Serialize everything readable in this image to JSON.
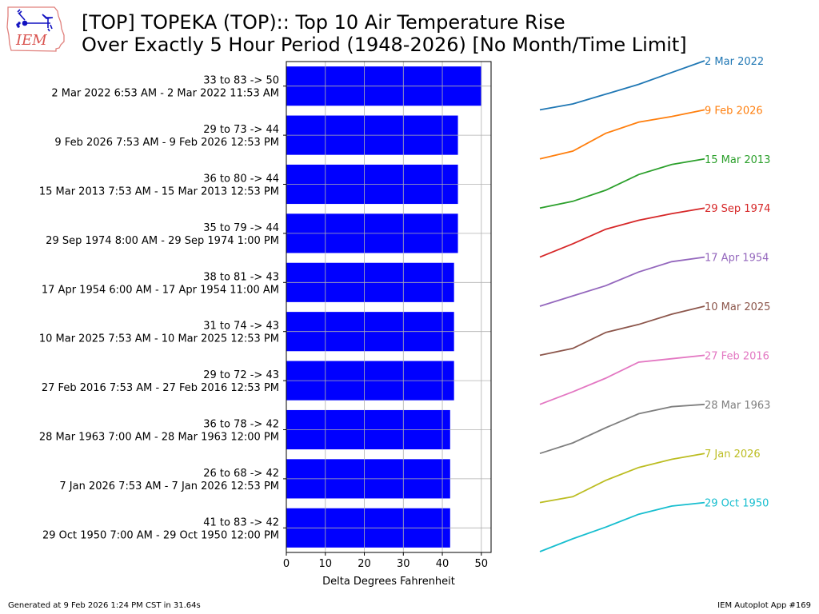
{
  "title": {
    "line1": "[TOP] TOPEKA (TOP):: Top 10 Air Temperature Rise",
    "line2": "Over Exactly 5 Hour Period (1948-2026) [No Month/Time Limit]"
  },
  "logo": {
    "text": "IEM"
  },
  "footer": {
    "left": "Generated at 9 Feb 2026 1:24 PM CST in 31.64s",
    "right": "IEM Autoplot App #169"
  },
  "colors": {
    "bar": "#0000ff",
    "grid": "#b0b0b0",
    "logo_red": "#d9534f",
    "logo_blue": "#1010c0"
  },
  "chart_data": {
    "type": "bar",
    "orientation": "horizontal",
    "xlabel": "Delta Degrees Fahrenheit",
    "xlim": [
      0,
      52.5
    ],
    "xticks": [
      0,
      10,
      20,
      30,
      40,
      50
    ],
    "grid": true,
    "categories": [
      {
        "line1": "33 to 83 -> 50",
        "line2": "2 Mar 2022 6:53 AM - 2 Mar 2022 11:53 AM"
      },
      {
        "line1": "29 to 73 -> 44",
        "line2": "9 Feb 2026 7:53 AM - 9 Feb 2026 12:53 PM"
      },
      {
        "line1": "36 to 80 -> 44",
        "line2": "15 Mar 2013 7:53 AM - 15 Mar 2013 12:53 PM"
      },
      {
        "line1": "35 to 79 -> 44",
        "line2": "29 Sep 1974 8:00 AM - 29 Sep 1974 1:00 PM"
      },
      {
        "line1": "38 to 81 -> 43",
        "line2": "17 Apr 1954 6:00 AM - 17 Apr 1954 11:00 AM"
      },
      {
        "line1": "31 to 74 -> 43",
        "line2": "10 Mar 2025 7:53 AM - 10 Mar 2025 12:53 PM"
      },
      {
        "line1": "29 to 72 -> 43",
        "line2": "27 Feb 2016 7:53 AM - 27 Feb 2016 12:53 PM"
      },
      {
        "line1": "36 to 78 -> 42",
        "line2": "28 Mar 1963 7:00 AM - 28 Mar 1963 12:00 PM"
      },
      {
        "line1": "26 to 68 -> 42",
        "line2": "7 Jan 2026 7:53 AM - 7 Jan 2026 12:53 PM"
      },
      {
        "line1": "41 to 83 -> 42",
        "line2": "29 Oct 1950 7:00 AM - 29 Oct 1950 12:00 PM"
      }
    ],
    "values": [
      50,
      44,
      44,
      44,
      43,
      43,
      43,
      42,
      42,
      42
    ],
    "sparklines": [
      {
        "label": "2 Mar 2022",
        "color": "#1f77b4",
        "temps": [
          33,
          39,
          49,
          59,
          71,
          83
        ]
      },
      {
        "label": "9 Feb 2026",
        "color": "#ff7f0e",
        "temps": [
          29,
          36,
          52,
          62,
          67,
          73
        ]
      },
      {
        "label": "15 Mar 2013",
        "color": "#2ca02c",
        "temps": [
          36,
          42,
          52,
          66,
          75,
          80
        ]
      },
      {
        "label": "29 Sep 1974",
        "color": "#d62728",
        "temps": [
          35,
          47,
          60,
          68,
          74,
          79
        ]
      },
      {
        "label": "17 Apr 1954",
        "color": "#9467bd",
        "temps": [
          38,
          47,
          56,
          68,
          77,
          81
        ]
      },
      {
        "label": "10 Mar 2025",
        "color": "#8c564b",
        "temps": [
          31,
          37,
          51,
          58,
          67,
          74
        ]
      },
      {
        "label": "27 Feb 2016",
        "color": "#e377c2",
        "temps": [
          29,
          40,
          52,
          66,
          69,
          72
        ]
      },
      {
        "label": "28 Mar 1963",
        "color": "#7f7f7f",
        "temps": [
          36,
          45,
          58,
          70,
          76,
          78
        ]
      },
      {
        "label": "7 Jan 2026",
        "color": "#bcbd22",
        "temps": [
          26,
          31,
          45,
          56,
          63,
          68
        ]
      },
      {
        "label": "29 Oct 1950",
        "color": "#17becf",
        "temps": [
          41,
          52,
          62,
          73,
          80,
          83
        ]
      }
    ]
  }
}
